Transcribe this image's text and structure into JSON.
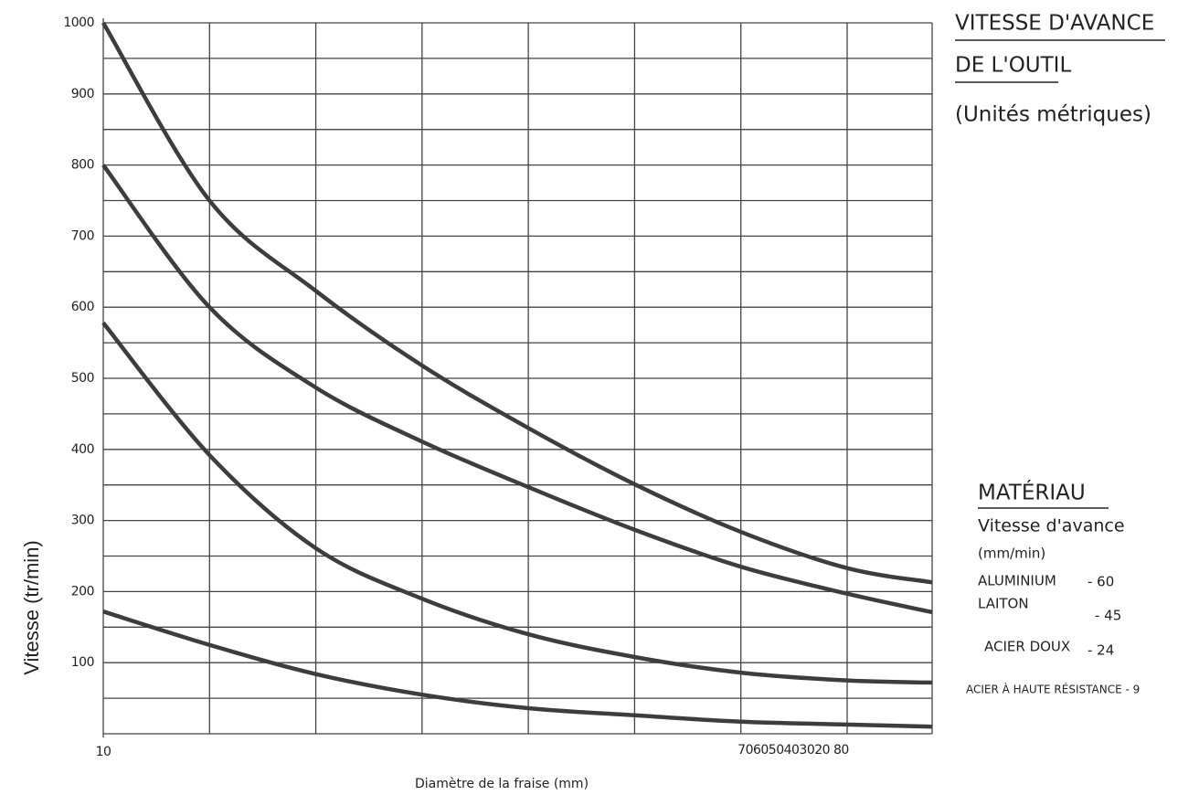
{
  "chart_data": {
    "type": "line",
    "title_lines": [
      "VITESSE D'AVANCE",
      "DE L'OUTIL"
    ],
    "subtitle": "(Unités métriques)",
    "y_label": "Vitesse (tr/min)",
    "x_label": "Diamètre de la fraise (mm)",
    "x": [
      10,
      20,
      30,
      40,
      50,
      60,
      70,
      80,
      88
    ],
    "xlim": [
      10,
      88
    ],
    "xticks": [
      10
    ],
    "x_grid": [
      20,
      30,
      40,
      50,
      60,
      70,
      80
    ],
    "x_tick_label_cluster": "706050403020 80",
    "ylim": [
      0,
      1000
    ],
    "yticks": [
      100,
      200,
      300,
      400,
      500,
      600,
      700,
      800,
      900,
      1000
    ],
    "y_minor_grid": [
      50,
      150,
      250,
      350,
      450,
      550,
      650,
      750,
      850,
      950
    ],
    "grid": true,
    "series": [
      {
        "color": "#3d3d3d",
        "values": [
          1000,
          750,
          623,
          518,
          430,
          351,
          284,
          233,
          213
        ]
      },
      {
        "color": "#3d3d3d",
        "values": [
          800,
          600,
          487,
          411,
          347,
          287,
          235,
          197,
          171
        ]
      },
      {
        "color": "#3d3d3d",
        "values": [
          578,
          392,
          261,
          190,
          140,
          108,
          86,
          75,
          72
        ]
      },
      {
        "color": "#3d3d3d",
        "values": [
          172,
          125,
          84,
          55,
          36,
          26,
          17,
          13,
          10
        ]
      }
    ],
    "legend_title": "MATÉRIAU",
    "legend_subtitle": "Vitesse d'avance",
    "legend_unit": "(mm/min)",
    "materials": [
      {
        "name": "ALUMINIUM",
        "rate": "- 60"
      },
      {
        "name": "LAITON",
        "rate": "- 45"
      },
      {
        "name": "ACIER DOUX",
        "rate": "- 24"
      },
      {
        "name": "ACIER À HAUTE RÉSISTANCE - 9"
      }
    ]
  }
}
